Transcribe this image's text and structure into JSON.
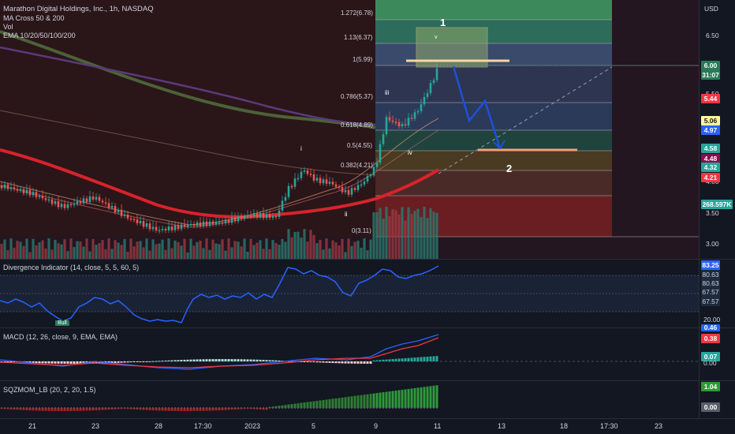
{
  "header": {
    "title": "Marathon Digital Holdings, Inc., 1h, NASDAQ",
    "studies": [
      "MA Cross 50 & 200",
      "Vol",
      "EMA 10/20/50/100/200"
    ]
  },
  "price_axis": {
    "currency": "USD",
    "ticks": [
      "6.50",
      "5.50",
      "4.00",
      "3.50",
      "3.00"
    ],
    "tags": [
      {
        "text": "6.00",
        "bg": "#2a7a58",
        "fg": "#ffffff"
      },
      {
        "text": "31:07",
        "bg": "#2a7a58",
        "fg": "#ffffff"
      },
      {
        "text": "5.44",
        "bg": "#f23645",
        "fg": "#ffffff"
      },
      {
        "text": "5.06",
        "bg": "#fff59d",
        "fg": "#131722"
      },
      {
        "text": "4.97",
        "bg": "#2962ff",
        "fg": "#ffffff"
      },
      {
        "text": "4.58",
        "bg": "#26a69a",
        "fg": "#ffffff"
      },
      {
        "text": "4.48",
        "bg": "#880e4f",
        "fg": "#ffffff"
      },
      {
        "text": "4.32",
        "bg": "#26a69a",
        "fg": "#ffffff"
      },
      {
        "text": "4.21",
        "bg": "#f23645",
        "fg": "#ffffff"
      },
      {
        "text": "268.597K",
        "bg": "#26a69a",
        "fg": "#ffffff"
      }
    ]
  },
  "fib_levels": [
    {
      "ratio": "1.272(6.78)"
    },
    {
      "ratio": "1.13(6.37)"
    },
    {
      "ratio": "1(5.99)"
    },
    {
      "ratio": "0.786(5.37)"
    },
    {
      "ratio": "0.618(4.89)"
    },
    {
      "ratio": "0.5(4.55)"
    },
    {
      "ratio": "0.382(4.21)"
    },
    {
      "ratio": "0(3.11)"
    }
  ],
  "wave_labels": {
    "w1": "1",
    "w2": "2",
    "i": "i",
    "ii": "ii",
    "iii": "iii",
    "iv": "iv",
    "v": "v"
  },
  "divergence": {
    "label": "Divergence Indicator (14, close, 5, 5, 60, 5)",
    "tags": [
      "83.25",
      "80.63",
      "80.63",
      "67.57",
      "67.57",
      "20.00"
    ],
    "bull_label": "Bull"
  },
  "macd": {
    "label": "MACD (12, 26, close, 9, EMA, EMA)",
    "tags": [
      "0.46",
      "0.38",
      "0.07",
      "0.00"
    ]
  },
  "sqz": {
    "label": "SQZMOM_LB (20, 2, 20, 1.5)",
    "tags": [
      "1.04",
      "0.00"
    ]
  },
  "time_axis": {
    "ticks": [
      "21",
      "23",
      "28",
      "17:30",
      "2023",
      "5",
      "9",
      "11",
      "13",
      "18",
      "17:30",
      "23"
    ]
  }
}
